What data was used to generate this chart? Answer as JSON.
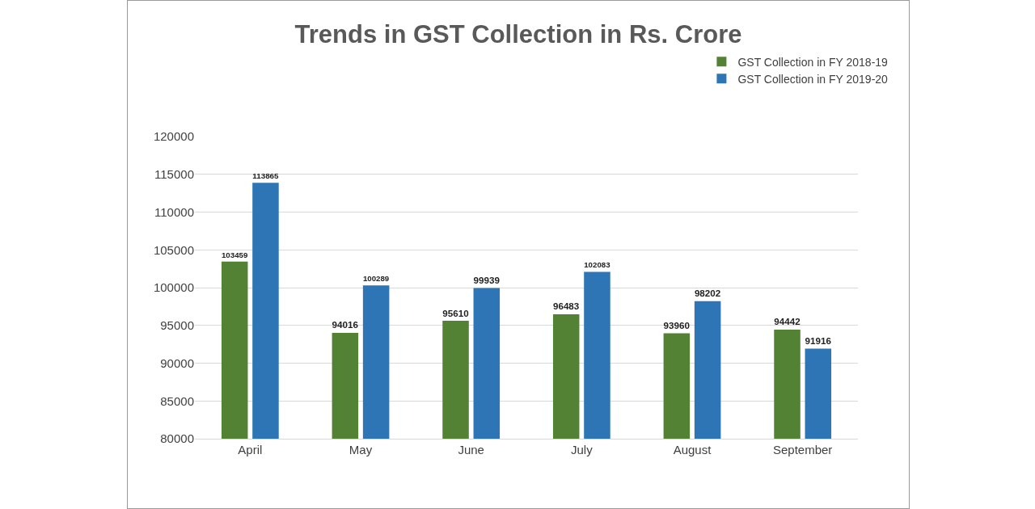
{
  "chart_data": {
    "type": "bar",
    "title": "Trends in GST Collection in Rs. Crore",
    "categories": [
      "April",
      "May",
      "June",
      "July",
      "August",
      "September"
    ],
    "series": [
      {
        "name": "GST Collection in FY 2018-19",
        "color": "#548235",
        "values": [
          103459,
          94016,
          95610,
          96483,
          93960,
          94442
        ]
      },
      {
        "name": "GST Collection in FY 2019-20",
        "color": "#2e75b6",
        "values": [
          113865,
          100289,
          99939,
          102083,
          98202,
          91916
        ]
      }
    ],
    "ylim": [
      80000,
      120000
    ],
    "yticks": [
      80000,
      85000,
      90000,
      95000,
      100000,
      105000,
      110000,
      115000,
      120000
    ],
    "grid": "y",
    "legend": "top right",
    "data_labels": true
  }
}
